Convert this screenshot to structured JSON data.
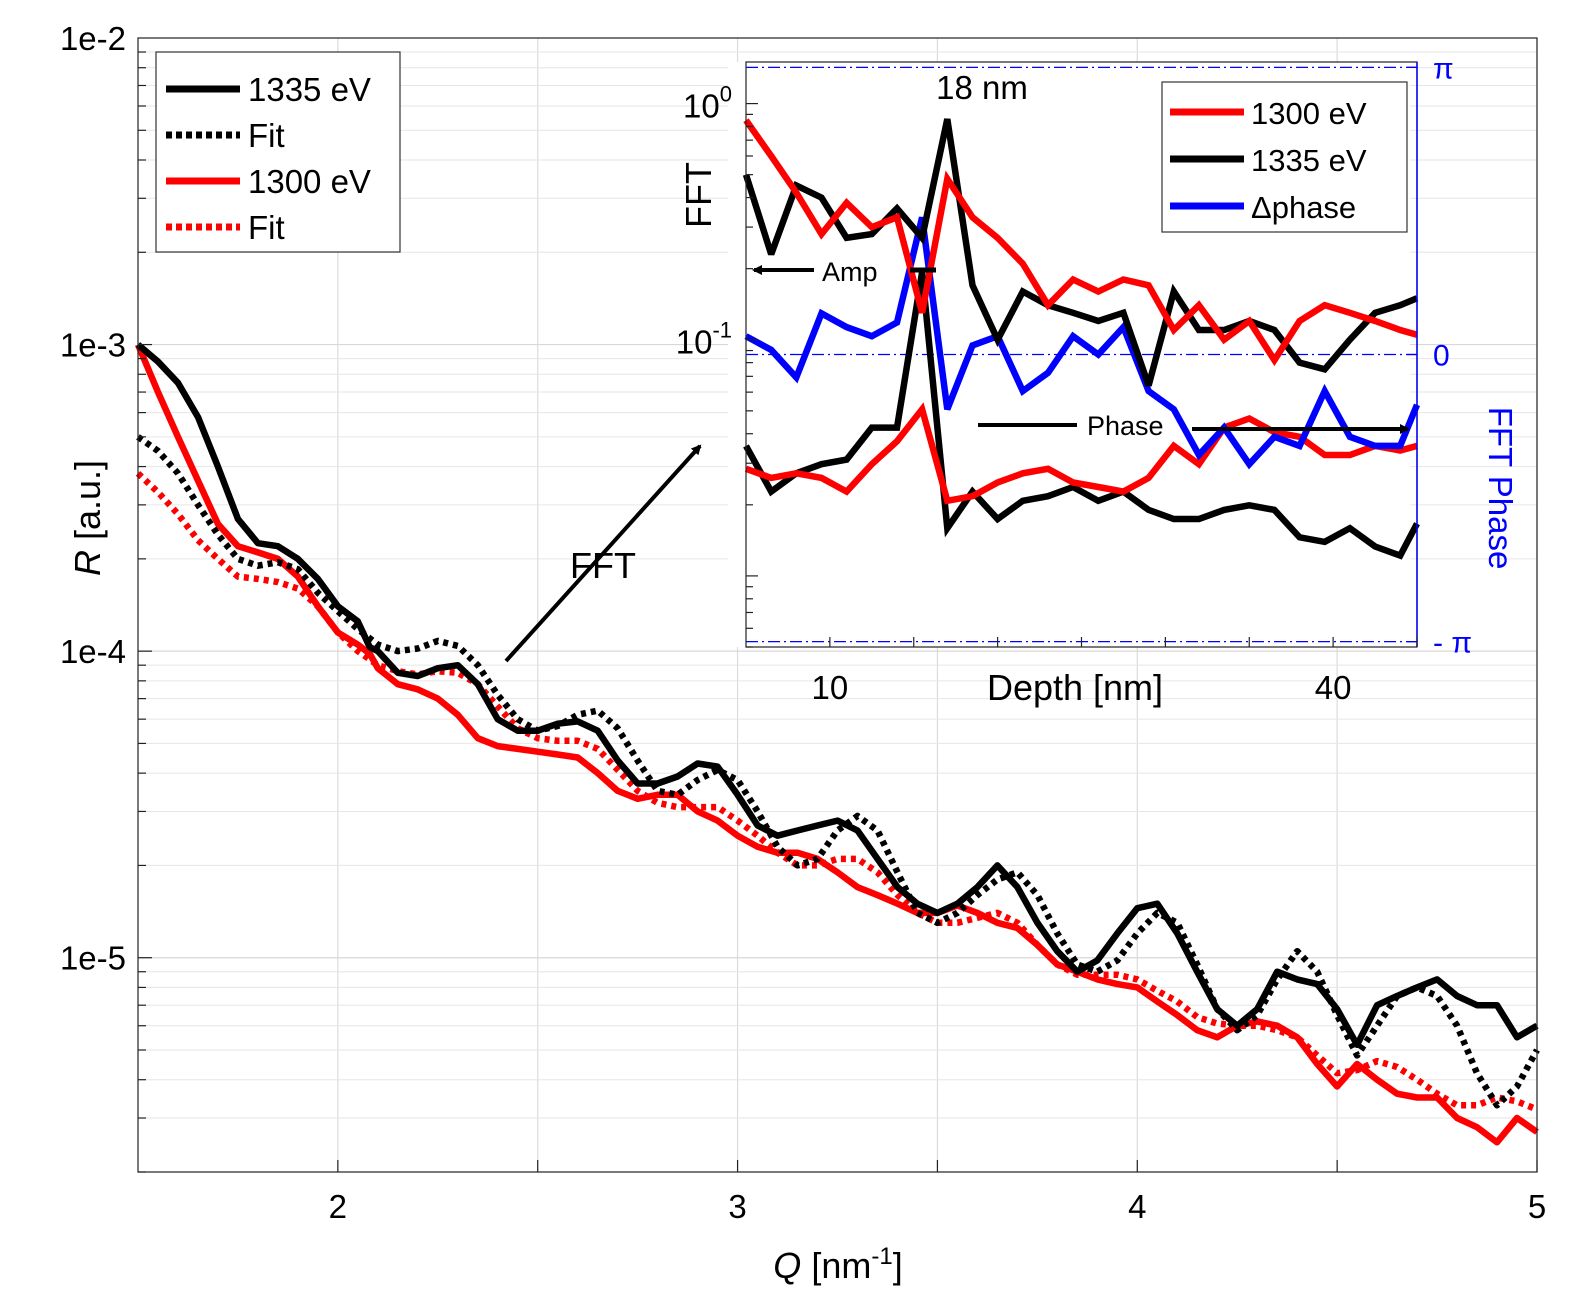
{
  "chart_data": [
    {
      "type": "line",
      "xlabel": "Q",
      "xunit": "[nm",
      "xunit_exp": "-1",
      "xunit_close": "]",
      "ylabel": "R",
      "yunit": "[a.u.]",
      "xlim": [
        1.5,
        5
      ],
      "ylim": [
        2e-06,
        0.01
      ],
      "yscale": "log",
      "xticks": [
        {
          "v": 2,
          "label": "2"
        },
        {
          "v": 3,
          "label": "3"
        },
        {
          "v": 4,
          "label": "4"
        },
        {
          "v": 5,
          "label": "5"
        }
      ],
      "yticks": [
        {
          "v": 0.01,
          "label": "1e-2"
        },
        {
          "v": 0.001,
          "label": "1e-3"
        },
        {
          "v": 0.0001,
          "label": "1e-4"
        },
        {
          "v": 1e-05,
          "label": "1e-5"
        }
      ],
      "grid": true,
      "legend": "top-left",
      "annotation": "FFT",
      "series": [
        {
          "name": "1335 eV",
          "color": "#000000",
          "style": "solid",
          "x": [
            1.5,
            1.55,
            1.6,
            1.65,
            1.7,
            1.75,
            1.8,
            1.85,
            1.9,
            1.95,
            2.0,
            2.05,
            2.08,
            2.1,
            2.15,
            2.2,
            2.25,
            2.3,
            2.35,
            2.4,
            2.45,
            2.5,
            2.55,
            2.6,
            2.65,
            2.7,
            2.75,
            2.8,
            2.85,
            2.9,
            2.95,
            3.0,
            3.05,
            3.1,
            3.15,
            3.2,
            3.25,
            3.3,
            3.35,
            3.4,
            3.45,
            3.5,
            3.55,
            3.6,
            3.65,
            3.7,
            3.75,
            3.8,
            3.85,
            3.9,
            3.95,
            4.0,
            4.05,
            4.1,
            4.15,
            4.2,
            4.25,
            4.3,
            4.35,
            4.4,
            4.45,
            4.5,
            4.55,
            4.6,
            4.65,
            4.7,
            4.75,
            4.8,
            4.85,
            4.9,
            4.95,
            5.0
          ],
          "y": [
            0.001,
            0.00088,
            0.00075,
            0.00058,
            0.0004,
            0.00027,
            0.000225,
            0.00022,
            0.0002,
            0.000172,
            0.00014,
            0.000125,
            0.000103,
            0.0001,
            8.5e-05,
            8.3e-05,
            8.8e-05,
            9e-05,
            7.8e-05,
            6e-05,
            5.5e-05,
            5.5e-05,
            5.8e-05,
            5.9e-05,
            5.5e-05,
            4.4e-05,
            3.7e-05,
            3.7e-05,
            3.9e-05,
            4.3e-05,
            4.2e-05,
            3.4e-05,
            2.7e-05,
            2.5e-05,
            2.6e-05,
            2.7e-05,
            2.8e-05,
            2.6e-05,
            2.1e-05,
            1.7e-05,
            1.5e-05,
            1.4e-05,
            1.5e-05,
            1.7e-05,
            2e-05,
            1.7e-05,
            1.3e-05,
            1.05e-05,
            9e-06,
            9.8e-06,
            1.2e-05,
            1.45e-05,
            1.5e-05,
            1.2e-05,
            9e-06,
            6.8e-06,
            6e-06,
            6.8e-06,
            9e-06,
            8.5e-06,
            8.2e-06,
            6.8e-06,
            5.2e-06,
            7e-06,
            7.5e-06,
            8e-06,
            8.5e-06,
            7.5e-06,
            7e-06,
            7e-06,
            5.5e-06,
            6e-06
          ]
        },
        {
          "name": "Fit",
          "color": "#000000",
          "style": "dotted",
          "x": [
            1.5,
            1.55,
            1.6,
            1.65,
            1.7,
            1.75,
            1.8,
            1.85,
            1.9,
            1.95,
            2.0,
            2.05,
            2.1,
            2.15,
            2.2,
            2.25,
            2.3,
            2.35,
            2.4,
            2.45,
            2.5,
            2.55,
            2.6,
            2.65,
            2.7,
            2.75,
            2.8,
            2.85,
            2.9,
            2.95,
            3.0,
            3.05,
            3.1,
            3.15,
            3.2,
            3.25,
            3.3,
            3.35,
            3.4,
            3.45,
            3.5,
            3.55,
            3.6,
            3.65,
            3.7,
            3.75,
            3.8,
            3.85,
            3.9,
            3.95,
            4.0,
            4.05,
            4.1,
            4.15,
            4.2,
            4.25,
            4.3,
            4.35,
            4.4,
            4.45,
            4.5,
            4.55,
            4.6,
            4.65,
            4.7,
            4.75,
            4.8,
            4.85,
            4.9,
            4.95,
            5.0
          ],
          "y": [
            0.0005,
            0.00045,
            0.00038,
            0.0003,
            0.00024,
            0.0002,
            0.00019,
            0.000195,
            0.000185,
            0.000155,
            0.000135,
            0.000118,
            0.000105,
            0.0001,
            0.000102,
            0.000108,
            0.000104,
            9e-05,
            7.2e-05,
            6e-05,
            5.5e-05,
            5.7e-05,
            6.2e-05,
            6.4e-05,
            5.6e-05,
            4.4e-05,
            3.5e-05,
            3.4e-05,
            3.8e-05,
            4.1e-05,
            3.8e-05,
            3e-05,
            2.3e-05,
            2e-05,
            2.1e-05,
            2.6e-05,
            2.9e-05,
            2.6e-05,
            1.9e-05,
            1.4e-05,
            1.3e-05,
            1.4e-05,
            1.6e-05,
            1.8e-05,
            1.9e-05,
            1.6e-05,
            1.2e-05,
            9.5e-06,
            9e-06,
            9.8e-06,
            1.2e-05,
            1.4e-05,
            1.3e-05,
            9.5e-06,
            6.8e-06,
            5.8e-06,
            6.5e-06,
            8.5e-06,
            1.05e-05,
            9e-06,
            6.5e-06,
            4.8e-06,
            6e-06,
            7.5e-06,
            8e-06,
            7.5e-06,
            6e-06,
            4.2e-06,
            3.3e-06,
            3.8e-06,
            5e-06
          ]
        },
        {
          "name": "1300 eV",
          "color": "#ff0000",
          "style": "solid",
          "x": [
            1.5,
            1.55,
            1.6,
            1.65,
            1.7,
            1.75,
            1.8,
            1.85,
            1.9,
            1.95,
            2.0,
            2.05,
            2.08,
            2.1,
            2.15,
            2.2,
            2.25,
            2.3,
            2.35,
            2.4,
            2.45,
            2.5,
            2.55,
            2.6,
            2.65,
            2.7,
            2.75,
            2.8,
            2.85,
            2.9,
            2.95,
            3.0,
            3.05,
            3.1,
            3.15,
            3.2,
            3.25,
            3.3,
            3.35,
            3.4,
            3.45,
            3.5,
            3.55,
            3.6,
            3.65,
            3.7,
            3.75,
            3.8,
            3.85,
            3.9,
            3.95,
            4.0,
            4.05,
            4.1,
            4.15,
            4.2,
            4.25,
            4.3,
            4.35,
            4.4,
            4.45,
            4.5,
            4.55,
            4.6,
            4.65,
            4.7,
            4.75,
            4.8,
            4.85,
            4.9,
            4.95,
            5.0
          ],
          "y": [
            0.001,
            0.0007,
            0.0005,
            0.00036,
            0.00026,
            0.00022,
            0.00021,
            0.0002,
            0.000175,
            0.00014,
            0.000115,
            0.000105,
            9.8e-05,
            8.8e-05,
            7.8e-05,
            7.5e-05,
            7e-05,
            6.2e-05,
            5.2e-05,
            4.9e-05,
            4.8e-05,
            4.7e-05,
            4.6e-05,
            4.5e-05,
            4e-05,
            3.5e-05,
            3.3e-05,
            3.4e-05,
            3.4e-05,
            3e-05,
            2.8e-05,
            2.5e-05,
            2.3e-05,
            2.2e-05,
            2.2e-05,
            2.1e-05,
            1.9e-05,
            1.7e-05,
            1.6e-05,
            1.5e-05,
            1.4e-05,
            1.4e-05,
            1.48e-05,
            1.4e-05,
            1.3e-05,
            1.25e-05,
            1.1e-05,
            9.5e-06,
            9e-06,
            8.5e-06,
            8.2e-06,
            8e-06,
            7.2e-06,
            6.5e-06,
            5.8e-06,
            5.5e-06,
            6e-06,
            6.2e-06,
            6e-06,
            5.5e-06,
            4.5e-06,
            3.8e-06,
            4.5e-06,
            4e-06,
            3.6e-06,
            3.5e-06,
            3.5e-06,
            3e-06,
            2.8e-06,
            2.5e-06,
            3e-06,
            2.7e-06
          ]
        },
        {
          "name": "Fit",
          "color": "#ff0000",
          "style": "dotted",
          "x": [
            1.5,
            1.55,
            1.6,
            1.65,
            1.7,
            1.75,
            1.8,
            1.85,
            1.9,
            1.95,
            2.0,
            2.05,
            2.1,
            2.15,
            2.2,
            2.25,
            2.3,
            2.35,
            2.4,
            2.45,
            2.5,
            2.55,
            2.6,
            2.65,
            2.7,
            2.75,
            2.8,
            2.85,
            2.9,
            2.95,
            3.0,
            3.05,
            3.1,
            3.15,
            3.2,
            3.25,
            3.3,
            3.35,
            3.4,
            3.45,
            3.5,
            3.55,
            3.6,
            3.65,
            3.7,
            3.75,
            3.8,
            3.85,
            3.9,
            3.95,
            4.0,
            4.05,
            4.1,
            4.15,
            4.2,
            4.25,
            4.3,
            4.35,
            4.4,
            4.45,
            4.5,
            4.55,
            4.6,
            4.65,
            4.7,
            4.75,
            4.8,
            4.85,
            4.9,
            4.95,
            5.0
          ],
          "y": [
            0.00038,
            0.00033,
            0.00028,
            0.00023,
            0.0002,
            0.000175,
            0.000172,
            0.000168,
            0.00016,
            0.00014,
            0.000115,
            0.0001,
            9e-05,
            8.6e-05,
            8.4e-05,
            8.6e-05,
            8.5e-05,
            7.8e-05,
            6.6e-05,
            5.6e-05,
            5.2e-05,
            5.1e-05,
            5.1e-05,
            4.8e-05,
            4.1e-05,
            3.5e-05,
            3.2e-05,
            3.1e-05,
            3.1e-05,
            3.1e-05,
            2.8e-05,
            2.5e-05,
            2.2e-05,
            2e-05,
            2e-05,
            2.1e-05,
            2.1e-05,
            1.9e-05,
            1.6e-05,
            1.4e-05,
            1.3e-05,
            1.3e-05,
            1.35e-05,
            1.4e-05,
            1.3e-05,
            1.1e-05,
            9.5e-06,
            8.8e-06,
            8.8e-06,
            8.8e-06,
            8.5e-06,
            7.8e-06,
            7.2e-06,
            6.4e-06,
            6.1e-06,
            6e-06,
            6e-06,
            5.8e-06,
            5.5e-06,
            4.8e-06,
            4.2e-06,
            4.3e-06,
            4.6e-06,
            4.4e-06,
            4e-06,
            3.6e-06,
            3.3e-06,
            3.3e-06,
            3.5e-06,
            3.4e-06,
            3.2e-06
          ]
        }
      ]
    },
    {
      "type": "line",
      "xlabel": "Depth [nm]",
      "ylabel_left": "FFT",
      "ylabel_right": "FFT Phase",
      "xlim": [
        5,
        45
      ],
      "ylim_left": [
        0.005,
        1.5
      ],
      "yscale_left": "log",
      "ylim_right": [
        -3.2,
        3.2
      ],
      "xticks": [
        {
          "v": 10,
          "label": "10"
        },
        {
          "v": 40,
          "label": "40"
        }
      ],
      "yticks_left": [
        {
          "v": 1,
          "base": "10",
          "exp": "0"
        },
        {
          "v": 0.1,
          "base": "10",
          "exp": "-1"
        }
      ],
      "yticks_right": [
        {
          "v": 3.14159,
          "label": "π"
        },
        {
          "v": 0,
          "label": "0"
        },
        {
          "v": -3.14159,
          "label": "- π"
        }
      ],
      "annotations": {
        "peak": "18 nm",
        "amp": "Amp",
        "phase": "Phase"
      },
      "legend": "top-right",
      "series": [
        {
          "name": "1300 eV",
          "color": "#ff0000",
          "axis": "amp",
          "x": [
            5,
            6.5,
            8,
            9.5,
            11,
            12.5,
            14,
            15.5,
            17,
            18.5,
            20,
            21.5,
            23,
            24.5,
            26,
            27.5,
            29,
            30.5,
            32,
            33.5,
            35,
            36.5,
            38,
            39.5,
            41,
            42.5,
            44,
            45
          ],
          "y": [
            0.85,
            0.6,
            0.42,
            0.28,
            0.38,
            0.3,
            0.33,
            0.13,
            0.48,
            0.33,
            0.27,
            0.21,
            0.14,
            0.18,
            0.16,
            0.18,
            0.17,
            0.11,
            0.14,
            0.1,
            0.12,
            0.082,
            0.12,
            0.14,
            0.13,
            0.12,
            0.11,
            0.105
          ]
        },
        {
          "name": "1335 eV",
          "color": "#000000",
          "axis": "amp",
          "x": [
            5,
            6.5,
            8,
            9.5,
            11,
            12.5,
            14,
            15.5,
            17,
            18.5,
            20,
            21.5,
            23,
            24.5,
            26,
            27.5,
            29,
            30.5,
            32,
            33.5,
            35,
            36.5,
            38,
            39.5,
            41,
            42.5,
            44,
            45
          ],
          "y": [
            0.5,
            0.23,
            0.45,
            0.4,
            0.27,
            0.28,
            0.36,
            0.27,
            0.86,
            0.17,
            0.1,
            0.16,
            0.14,
            0.13,
            0.12,
            0.13,
            0.064,
            0.16,
            0.11,
            0.11,
            0.12,
            0.11,
            0.08,
            0.075,
            0.1,
            0.13,
            0.14,
            0.15
          ]
        },
        {
          "name": "Δphase",
          "color": "#0000ff",
          "axis": "phase",
          "x": [
            5,
            6.5,
            8,
            9.5,
            11,
            12.5,
            14,
            15.5,
            17,
            18.5,
            20,
            21.5,
            23,
            24.5,
            26,
            27.5,
            29,
            30.5,
            32,
            33.5,
            35,
            36.5,
            38,
            39.5,
            41,
            42.5,
            44,
            45
          ],
          "y": [
            0.2,
            0.05,
            -0.25,
            0.45,
            0.3,
            0.2,
            0.35,
            1.5,
            -0.6,
            0.1,
            0.2,
            -0.4,
            -0.2,
            0.2,
            0.0,
            0.3,
            -0.4,
            -0.6,
            -1.1,
            -0.8,
            -1.2,
            -0.9,
            -1.0,
            -0.4,
            -0.9,
            -1.0,
            -1.0,
            -0.55
          ]
        },
        {
          "name": "1335 eV phase",
          "color": "#000000",
          "axis": "phase",
          "x": [
            5,
            6.5,
            8,
            9.5,
            11,
            12.5,
            14,
            15.5,
            17,
            18.5,
            20,
            21.5,
            23,
            24.5,
            26,
            27.5,
            29,
            30.5,
            32,
            33.5,
            35,
            36.5,
            38,
            39.5,
            41,
            42.5,
            44,
            45
          ],
          "y": [
            -1.0,
            -1.5,
            -1.3,
            -1.2,
            -1.15,
            -0.8,
            -0.8,
            0.9,
            -1.9,
            -1.5,
            -1.8,
            -1.6,
            -1.55,
            -1.45,
            -1.6,
            -1.5,
            -1.7,
            -1.8,
            -1.8,
            -1.7,
            -1.65,
            -1.7,
            -2.0,
            -2.05,
            -1.9,
            -2.1,
            -2.2,
            -1.85
          ]
        },
        {
          "name": "1300 eV phase",
          "color": "#ff0000",
          "axis": "phase",
          "x": [
            5,
            6.5,
            8,
            9.5,
            11,
            12.5,
            14,
            15.5,
            17,
            18.5,
            20,
            21.5,
            23,
            24.5,
            26,
            27.5,
            29,
            30.5,
            32,
            33.5,
            35,
            36.5,
            38,
            39.5,
            41,
            42.5,
            44,
            45
          ],
          "y": [
            -1.25,
            -1.35,
            -1.3,
            -1.35,
            -1.5,
            -1.2,
            -0.95,
            -0.6,
            -1.6,
            -1.55,
            -1.4,
            -1.3,
            -1.25,
            -1.4,
            -1.45,
            -1.5,
            -1.35,
            -1.0,
            -1.2,
            -0.8,
            -0.7,
            -0.85,
            -0.9,
            -1.1,
            -1.1,
            -1.0,
            -1.05,
            -1.0
          ]
        }
      ]
    }
  ]
}
